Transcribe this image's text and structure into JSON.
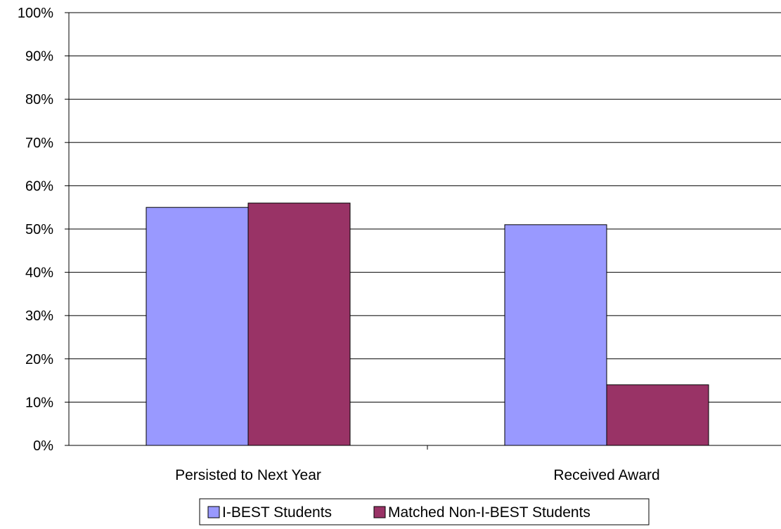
{
  "chart_data": {
    "type": "bar",
    "categories": [
      "Persisted to Next Year",
      "Received Award"
    ],
    "series": [
      {
        "name": "I-BEST Students",
        "values": [
          55,
          51
        ],
        "color": "#9999ff"
      },
      {
        "name": "Matched Non-I-BEST Students",
        "values": [
          56,
          14
        ],
        "color": "#993366"
      }
    ],
    "ylim": [
      0,
      100
    ],
    "yticks": [
      "0%",
      "10%",
      "20%",
      "30%",
      "40%",
      "50%",
      "60%",
      "70%",
      "80%",
      "90%",
      "100%"
    ],
    "grid": true,
    "legend_position": "bottom"
  }
}
